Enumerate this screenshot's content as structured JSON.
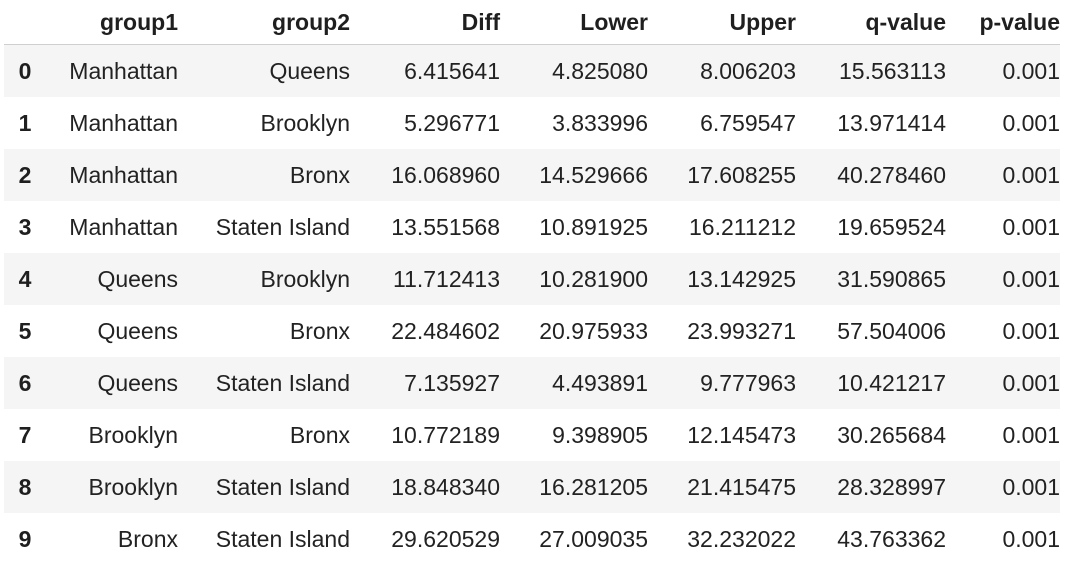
{
  "table": {
    "columns": [
      "group1",
      "group2",
      "Diff",
      "Lower",
      "Upper",
      "q-value",
      "p-value"
    ],
    "rows": [
      {
        "index": "0",
        "group1": "Manhattan",
        "group2": "Queens",
        "diff": "6.415641",
        "lower": "4.825080",
        "upper": "8.006203",
        "q": "15.563113",
        "p": "0.001"
      },
      {
        "index": "1",
        "group1": "Manhattan",
        "group2": "Brooklyn",
        "diff": "5.296771",
        "lower": "3.833996",
        "upper": "6.759547",
        "q": "13.971414",
        "p": "0.001"
      },
      {
        "index": "2",
        "group1": "Manhattan",
        "group2": "Bronx",
        "diff": "16.068960",
        "lower": "14.529666",
        "upper": "17.608255",
        "q": "40.278460",
        "p": "0.001"
      },
      {
        "index": "3",
        "group1": "Manhattan",
        "group2": "Staten Island",
        "diff": "13.551568",
        "lower": "10.891925",
        "upper": "16.211212",
        "q": "19.659524",
        "p": "0.001"
      },
      {
        "index": "4",
        "group1": "Queens",
        "group2": "Brooklyn",
        "diff": "11.712413",
        "lower": "10.281900",
        "upper": "13.142925",
        "q": "31.590865",
        "p": "0.001"
      },
      {
        "index": "5",
        "group1": "Queens",
        "group2": "Bronx",
        "diff": "22.484602",
        "lower": "20.975933",
        "upper": "23.993271",
        "q": "57.504006",
        "p": "0.001"
      },
      {
        "index": "6",
        "group1": "Queens",
        "group2": "Staten Island",
        "diff": "7.135927",
        "lower": "4.493891",
        "upper": "9.777963",
        "q": "10.421217",
        "p": "0.001"
      },
      {
        "index": "7",
        "group1": "Brooklyn",
        "group2": "Bronx",
        "diff": "10.772189",
        "lower": "9.398905",
        "upper": "12.145473",
        "q": "30.265684",
        "p": "0.001"
      },
      {
        "index": "8",
        "group1": "Brooklyn",
        "group2": "Staten Island",
        "diff": "18.848340",
        "lower": "16.281205",
        "upper": "21.415475",
        "q": "28.328997",
        "p": "0.001"
      },
      {
        "index": "9",
        "group1": "Bronx",
        "group2": "Staten Island",
        "diff": "29.620529",
        "lower": "27.009035",
        "upper": "32.232022",
        "q": "43.763362",
        "p": "0.001"
      }
    ]
  }
}
